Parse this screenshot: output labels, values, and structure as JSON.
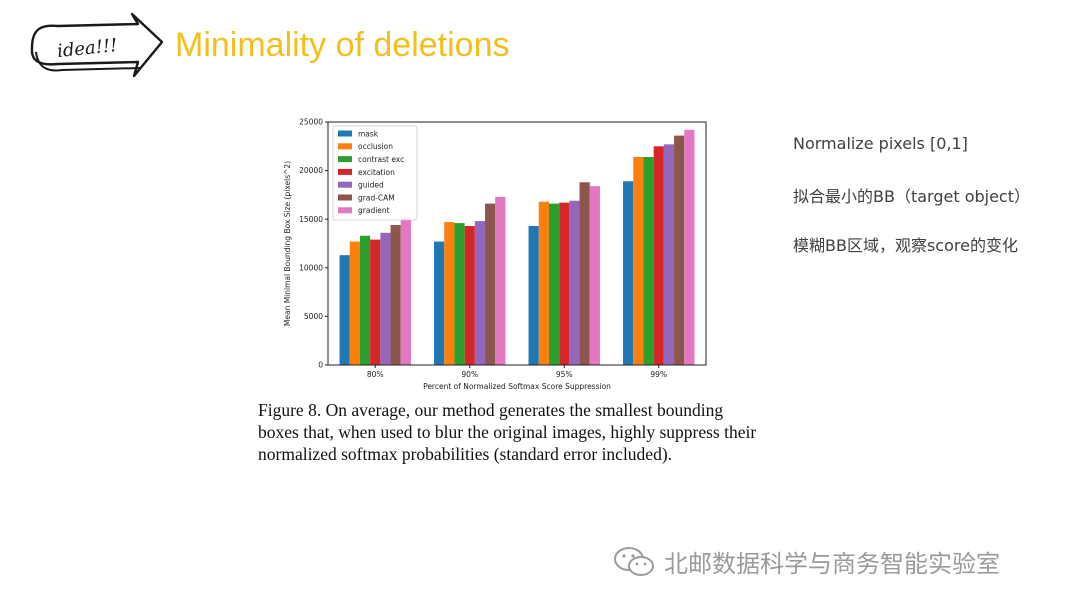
{
  "slide": {
    "badge_text": "idea!!!",
    "title": "Minimality of deletions"
  },
  "figure_caption": "Figure 8. On average, our method generates the smallest bounding boxes that, when used to blur the original images, highly suppress their normalized softmax probabilities (standard error included).",
  "notes": [
    "Normalize pixels [0,1]",
    "拟合最小的BB（target object）",
    "模糊BB区域，观察score的变化"
  ],
  "watermark": {
    "text": "北邮数据科学与商务智能实验室",
    "icon": "wechat-icon"
  },
  "chart_data": {
    "type": "bar",
    "title": "",
    "xlabel": "Percent of Normalized Softmax Score Suppression",
    "ylabel": "Mean Minimal Bounding Box Size (pixels^2)",
    "ylim": [
      0,
      25000
    ],
    "yticks": [
      0,
      5000,
      10000,
      15000,
      20000,
      25000
    ],
    "categories": [
      "80%",
      "90%",
      "95%",
      "99%"
    ],
    "legend_position": "top-left",
    "series": [
      {
        "name": "mask",
        "color": "#1f77b4",
        "values": [
          11300,
          12700,
          14300,
          18900
        ]
      },
      {
        "name": "occlusion",
        "color": "#ff7f0e",
        "values": [
          12700,
          14700,
          16800,
          21400
        ]
      },
      {
        "name": "contrast exc",
        "color": "#2ca02c",
        "values": [
          13300,
          14600,
          16600,
          21400
        ]
      },
      {
        "name": "excitation",
        "color": "#d62728",
        "values": [
          12900,
          14300,
          16700,
          22500
        ]
      },
      {
        "name": "guided",
        "color": "#9467bd",
        "values": [
          13600,
          14800,
          16900,
          22700
        ]
      },
      {
        "name": "grad-CAM",
        "color": "#8c564b",
        "values": [
          14400,
          16600,
          18800,
          23600
        ]
      },
      {
        "name": "gradient",
        "color": "#e377c2",
        "values": [
          15200,
          17300,
          18400,
          24200
        ]
      }
    ]
  }
}
